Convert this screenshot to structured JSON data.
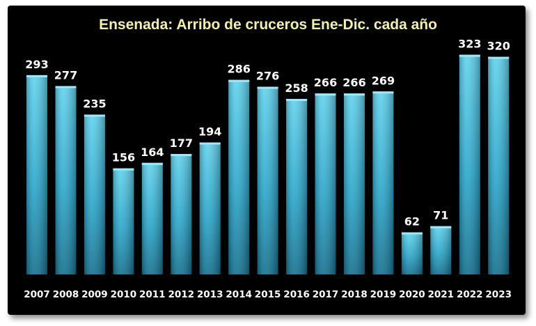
{
  "chart_data": {
    "type": "bar",
    "title": "Ensenada: Arribo de cruceros Ene-Dic. cada año",
    "xlabel": "",
    "ylabel": "",
    "categories": [
      "2007",
      "2008",
      "2009",
      "2010",
      "2011",
      "2012",
      "2013",
      "2014",
      "2015",
      "2016",
      "2017",
      "2018",
      "2019",
      "2020",
      "2021",
      "2022",
      "2023"
    ],
    "values": [
      293,
      277,
      235,
      156,
      164,
      177,
      194,
      286,
      276,
      258,
      266,
      266,
      269,
      62,
      71,
      323,
      320
    ],
    "ylim": [
      0,
      350
    ],
    "grid": false,
    "legend": "none",
    "colors": {
      "background": "#000000",
      "bar_top": "#5fd3ee",
      "bar_mid": "#2aa7cc",
      "bar_bottom": "#12708f",
      "title": "#f5f0a8",
      "labels": "#ffffff"
    }
  }
}
